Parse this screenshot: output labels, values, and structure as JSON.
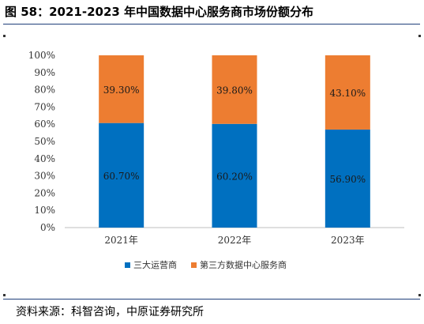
{
  "figure": {
    "title": "图 58：2021-2023 年中国数据中心服务商市场份额分布",
    "source": "资料来源：科智咨询，中原证券研究所"
  },
  "chart_data": {
    "type": "bar",
    "stacked": true,
    "title": "",
    "xlabel": "",
    "ylabel": "",
    "categories": [
      "2021年",
      "2022年",
      "2023年"
    ],
    "series": [
      {
        "name": "三大运营商",
        "values": [
          60.7,
          60.2,
          56.9
        ],
        "labels": [
          "60.70%",
          "60.20%",
          "56.90%"
        ],
        "color": "#0070c0"
      },
      {
        "name": "第三方数据中心服务商",
        "values": [
          39.3,
          39.8,
          43.1
        ],
        "labels": [
          "39.30%",
          "39.80%",
          "43.10%"
        ],
        "color": "#ed7d31"
      }
    ],
    "ylim": [
      0,
      100
    ],
    "yticks": [
      "0%",
      "10%",
      "20%",
      "30%",
      "40%",
      "50%",
      "60%",
      "70%",
      "80%",
      "90%",
      "100%"
    ],
    "grid": false,
    "legend": "bottom"
  }
}
